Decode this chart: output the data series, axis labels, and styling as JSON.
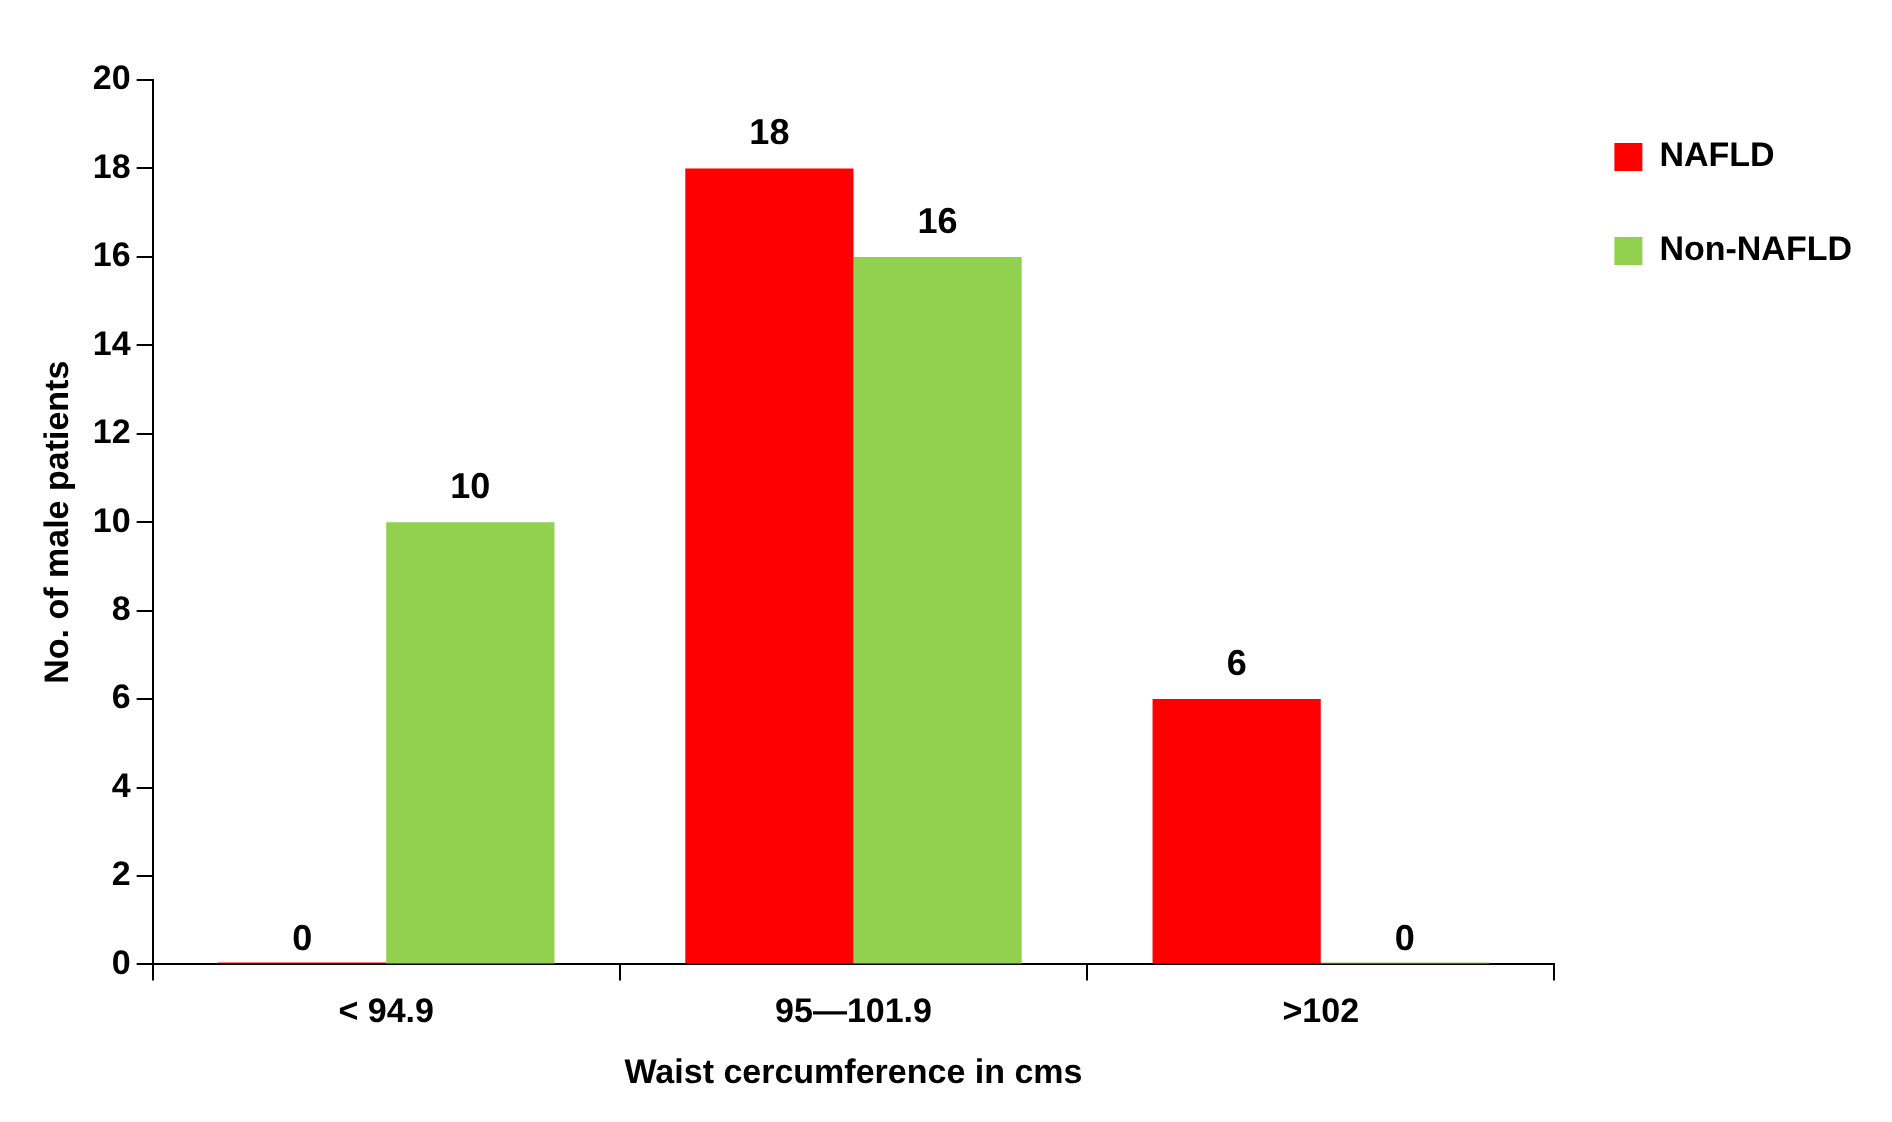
{
  "chart_data": {
    "type": "bar",
    "xlabel": "Waist cercumference in cms",
    "ylabel": "No. of male patients",
    "categories": [
      "< 94.9",
      "95—101.9",
      ">102"
    ],
    "series": [
      {
        "name": "NAFLD",
        "color": "#ff0000",
        "values": [
          0,
          18,
          6
        ]
      },
      {
        "name": "Non-NAFLD",
        "color": "#92d050",
        "values": [
          10,
          16,
          0
        ]
      }
    ],
    "ylim": [
      0,
      20
    ],
    "yticks": [
      0,
      2,
      4,
      6,
      8,
      10,
      12,
      14,
      16,
      18,
      20
    ],
    "grid": false,
    "legend": "top right",
    "data_labels": true
  }
}
